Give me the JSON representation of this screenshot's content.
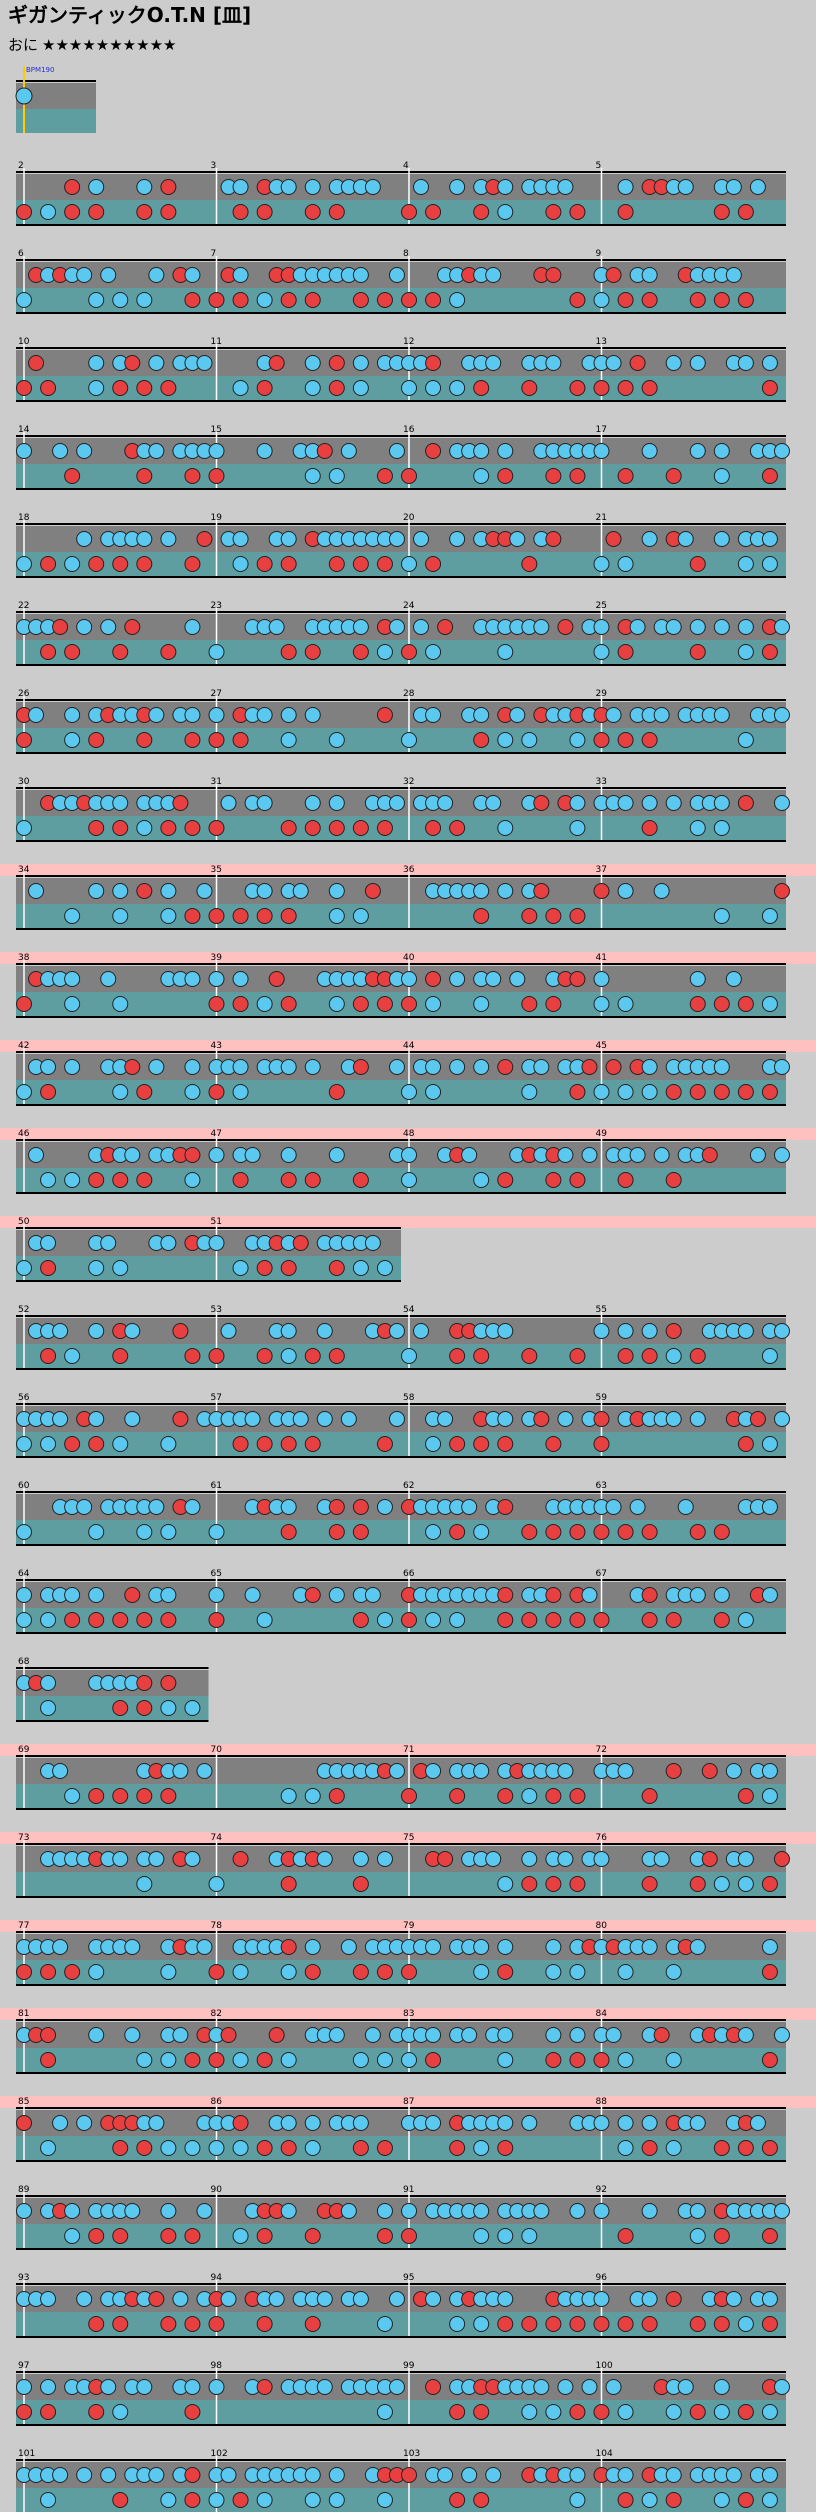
{
  "header": {
    "title": "ギガンティックO.T.N [皿]",
    "difficulty": "おに",
    "stars": "★★★★★★★★★★",
    "bpm": "BPM190"
  },
  "rows": [
    {
      "measures": [
        "2",
        "3",
        "4",
        "5"
      ],
      "gogo": false
    },
    {
      "measures": [
        "6",
        "7",
        "8",
        "9"
      ],
      "gogo": false
    },
    {
      "measures": [
        "10",
        "11",
        "12",
        "13"
      ],
      "gogo": false
    },
    {
      "measures": [
        "14",
        "15",
        "16",
        "17"
      ],
      "gogo": false
    },
    {
      "measures": [
        "18",
        "19",
        "20",
        "21"
      ],
      "gogo": false
    },
    {
      "measures": [
        "22",
        "23",
        "24",
        "25"
      ],
      "gogo": false
    },
    {
      "measures": [
        "26",
        "27",
        "28",
        "29"
      ],
      "gogo": false
    },
    {
      "measures": [
        "30",
        "31",
        "32",
        "33"
      ],
      "gogo": false
    },
    {
      "measures": [
        "34",
        "35",
        "36",
        "37"
      ],
      "gogo": true
    },
    {
      "measures": [
        "38",
        "39",
        "40",
        "41"
      ],
      "gogo": true
    },
    {
      "measures": [
        "42",
        "43",
        "44",
        "45"
      ],
      "gogo": true
    },
    {
      "measures": [
        "46",
        "47",
        "48",
        "49"
      ],
      "gogo": true
    },
    {
      "measures": [
        "50",
        "51"
      ],
      "gogo": true
    },
    {
      "measures": [
        "52",
        "53",
        "54",
        "55"
      ],
      "gogo": false
    },
    {
      "measures": [
        "56",
        "57",
        "58",
        "59"
      ],
      "gogo": false
    },
    {
      "measures": [
        "60",
        "61",
        "62",
        "63"
      ],
      "gogo": false
    },
    {
      "measures": [
        "64",
        "65",
        "66",
        "67"
      ],
      "gogo": false
    },
    {
      "measures": [
        "68"
      ],
      "gogo": false
    },
    {
      "measures": [
        "69",
        "70",
        "71",
        "72"
      ],
      "gogo": true
    },
    {
      "measures": [
        "73",
        "74",
        "75",
        "76"
      ],
      "gogo": true
    },
    {
      "measures": [
        "77",
        "78",
        "79",
        "80"
      ],
      "gogo": true
    },
    {
      "measures": [
        "81",
        "82",
        "83",
        "84"
      ],
      "gogo": true
    },
    {
      "measures": [
        "85",
        "86",
        "87",
        "88"
      ],
      "gogo": true
    },
    {
      "measures": [
        "89",
        "90",
        "91",
        "92"
      ],
      "gogo": false
    },
    {
      "measures": [
        "93",
        "94",
        "95",
        "96"
      ],
      "gogo": false
    },
    {
      "measures": [
        "97",
        "98",
        "99",
        "100"
      ],
      "gogo": false
    },
    {
      "measures": [
        "101",
        "102",
        "103",
        "104"
      ],
      "gogo": false
    }
  ]
}
